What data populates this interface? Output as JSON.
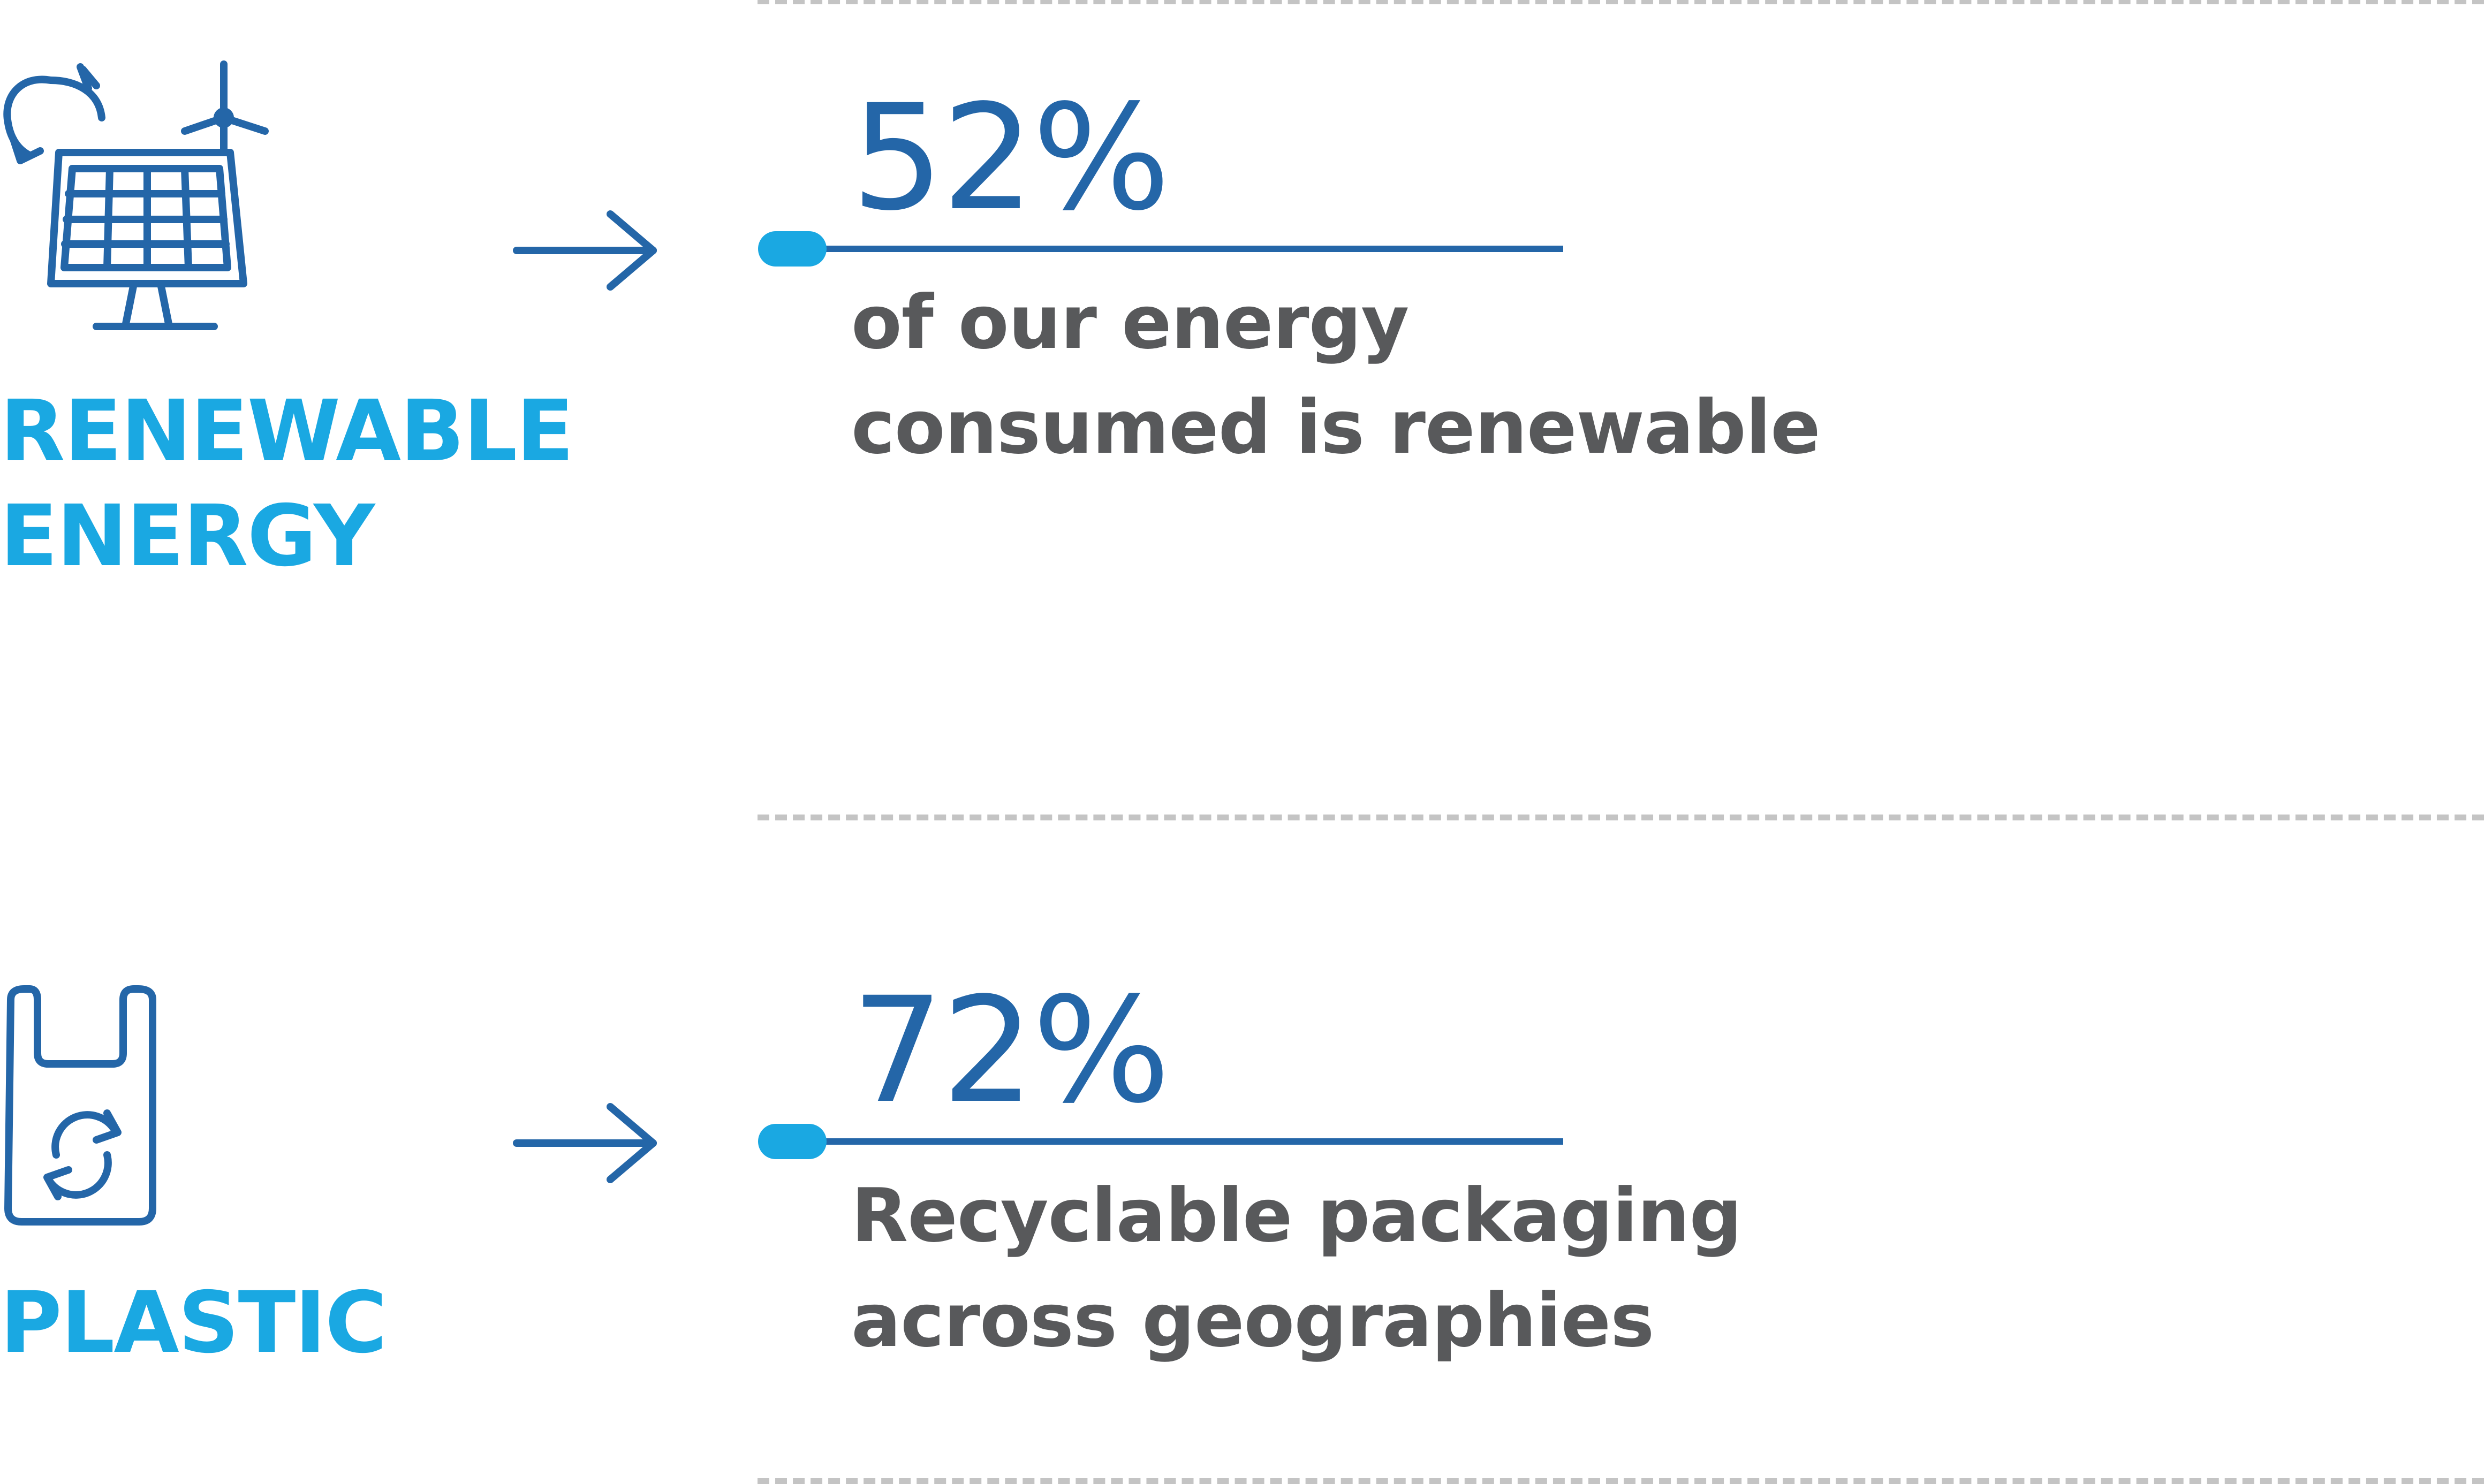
{
  "colors": {
    "accent_light": "#1aa8e2",
    "accent_dark": "#2466a8",
    "text_gray": "#58595b",
    "divider_gray": "#c4c4c4"
  },
  "items": [
    {
      "category_lines": [
        "RENEWABLE",
        "ENERGY"
      ],
      "icon": "solar-panel-wind-turbine-icon",
      "value": "52%",
      "description_lines": [
        "of our energy",
        "consumed is renewable"
      ]
    },
    {
      "category_lines": [
        "PLASTIC"
      ],
      "icon": "recyclable-bag-icon",
      "value": "72%",
      "description_lines": [
        "Recyclable packaging",
        "across geographies"
      ]
    }
  ]
}
